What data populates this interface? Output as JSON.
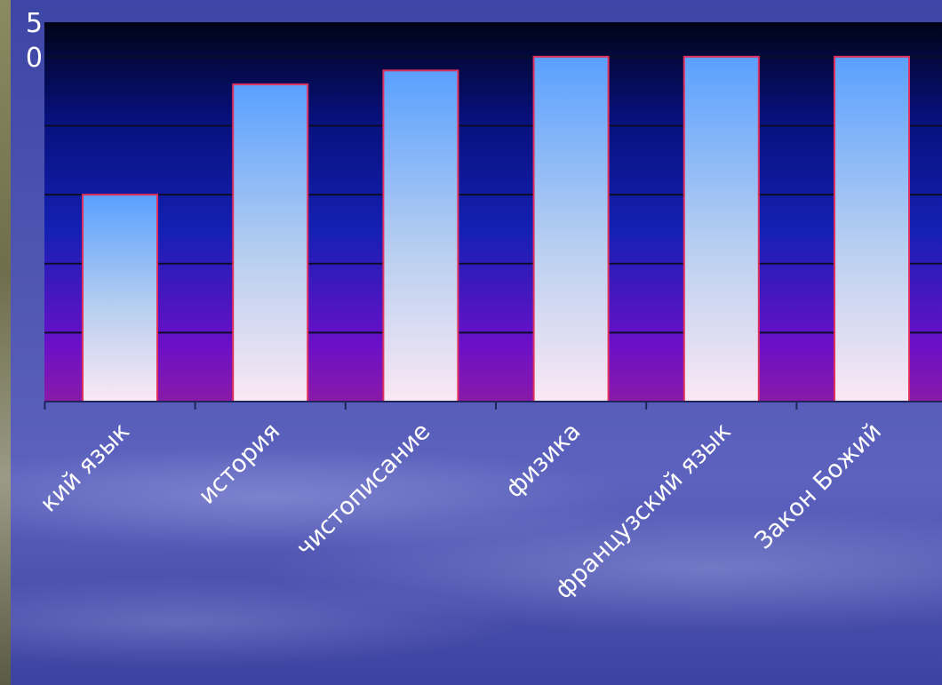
{
  "chart_data": {
    "type": "bar",
    "title": "",
    "xlabel": "",
    "ylabel": "",
    "categories": [
      "кий язык",
      "история",
      "чистописание",
      "физика",
      "французский язык",
      "Закон Божий"
    ],
    "values": [
      3,
      4.6,
      4.8,
      5,
      5,
      5
    ],
    "ytick_labels": [
      {
        "value": 5.5,
        "label": "5"
      },
      {
        "value": 5,
        "label": "0"
      }
    ],
    "ylim": [
      0,
      5.5
    ],
    "yticks": [
      0,
      1,
      2,
      3,
      4,
      5,
      5.5
    ],
    "grid": true,
    "colors": {
      "bar_top": "#5aa0ff",
      "bar_bottom": "#fbe8f4",
      "bar_border": "#e0315e",
      "plot_top": "#000418",
      "plot_mid": "#1420b4",
      "plot_bottom": "#6b10c8"
    }
  }
}
